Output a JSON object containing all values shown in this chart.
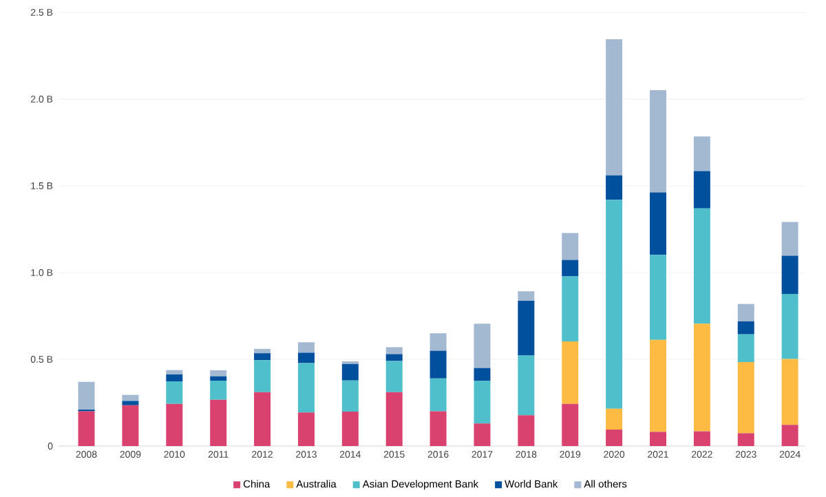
{
  "chart_data": {
    "type": "bar",
    "stacked": true,
    "categories": [
      "2008",
      "2009",
      "2010",
      "2011",
      "2012",
      "2013",
      "2014",
      "2015",
      "2016",
      "2017",
      "2018",
      "2019",
      "2020",
      "2021",
      "2022",
      "2023",
      "2024"
    ],
    "series": [
      {
        "name": "China",
        "color": "#d9426e",
        "values": [
          0.2,
          0.235,
          0.243,
          0.267,
          0.31,
          0.193,
          0.198,
          0.31,
          0.2,
          0.13,
          0.177,
          0.243,
          0.095,
          0.082,
          0.085,
          0.074,
          0.122
        ]
      },
      {
        "name": "Australia",
        "color": "#fdbb43",
        "values": [
          null,
          null,
          null,
          null,
          null,
          null,
          null,
          null,
          null,
          null,
          null,
          0.36,
          0.12,
          0.53,
          0.62,
          0.41,
          0.38
        ]
      },
      {
        "name": "Asian Development Bank",
        "color": "#4fc0cb",
        "values": [
          null,
          null,
          0.13,
          0.11,
          0.185,
          0.285,
          0.18,
          0.18,
          0.19,
          0.245,
          0.345,
          0.375,
          1.205,
          0.49,
          0.665,
          0.16,
          0.375
        ]
      },
      {
        "name": "World Bank",
        "color": "#00509d",
        "values": [
          0.01,
          0.025,
          0.04,
          0.025,
          0.04,
          0.06,
          0.095,
          0.04,
          0.16,
          0.075,
          0.315,
          0.095,
          0.14,
          0.36,
          0.215,
          0.075,
          0.22
        ]
      },
      {
        "name": "All others",
        "color": "#a3b8d1",
        "values": [
          0.16,
          0.035,
          0.025,
          0.035,
          0.025,
          0.06,
          0.015,
          0.04,
          0.1,
          0.255,
          0.055,
          0.155,
          0.785,
          0.59,
          0.2,
          0.1,
          0.195
        ]
      }
    ],
    "ylim": [
      0,
      2.5
    ],
    "yticks": [
      {
        "value": 0,
        "label": "0"
      },
      {
        "value": 0.5,
        "label": "0.5 B"
      },
      {
        "value": 1.0,
        "label": "1.0 B"
      },
      {
        "value": 1.5,
        "label": "1.5 B"
      },
      {
        "value": 2.0,
        "label": "2.0 B"
      },
      {
        "value": 2.5,
        "label": "2.5 B"
      }
    ],
    "grid": "y",
    "legend": "bottom"
  }
}
